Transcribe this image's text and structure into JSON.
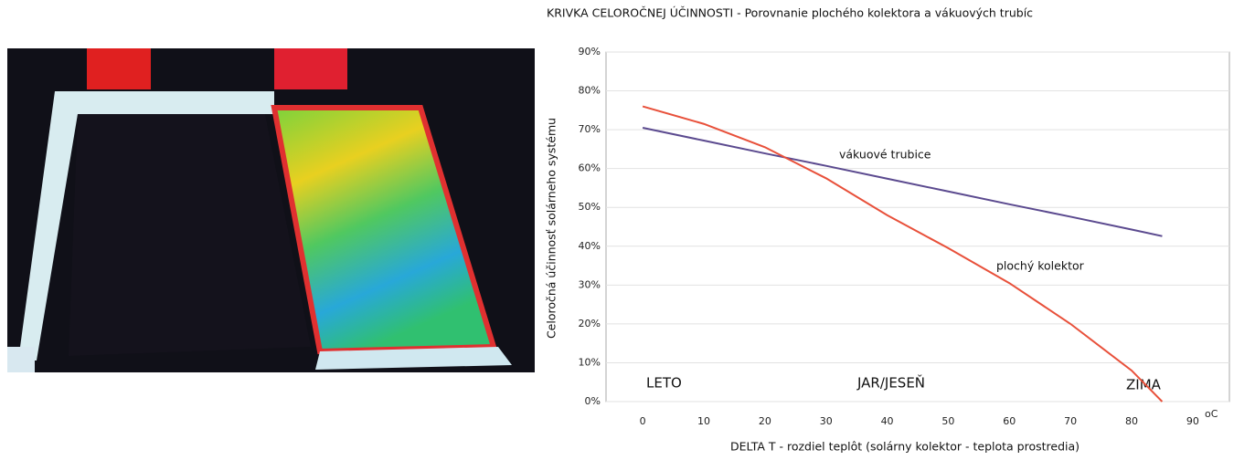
{
  "chart_data": {
    "type": "line",
    "title": "KRIVKA CELOROČNEJ ÚČINNOSTI - Porovnanie plochého kolektora a vákuových trubíc",
    "y_label": "Celoročná účinnosť solárneho systému",
    "x_label": "DELTA T - rozdiel teplôt (solárny kolektor  - teplota prostredia)",
    "x_unit": "oC",
    "annotations": [
      "LETO",
      "JAR/JESEŇ",
      "ZIMA"
    ],
    "x": [
      0,
      10,
      20,
      30,
      40,
      50,
      60,
      70,
      80,
      85
    ],
    "series": [
      {
        "name": "vákuové trubice",
        "color": "#5b4a8f",
        "values": [
          70.5,
          67.2,
          63.9,
          60.7,
          57.4,
          54.1,
          50.8,
          47.6,
          44.3,
          42.6
        ]
      },
      {
        "name": "plochý kolektor",
        "color": "#e8503a",
        "values": [
          76,
          71.5,
          65.5,
          57.5,
          48,
          39.5,
          30.5,
          20,
          8,
          0
        ]
      }
    ],
    "xlim": [
      -6,
      96
    ],
    "ylim": [
      0,
      90
    ],
    "xticks": [
      0,
      10,
      20,
      30,
      40,
      50,
      60,
      70,
      80,
      90
    ],
    "yticks": [
      {
        "value": 0,
        "label": "0%"
      },
      {
        "value": 10,
        "label": "10%"
      },
      {
        "value": 20,
        "label": "20%"
      },
      {
        "value": 30,
        "label": "30%"
      },
      {
        "value": 40,
        "label": "40%"
      },
      {
        "value": 50,
        "label": "50%"
      },
      {
        "value": 60,
        "label": "60%"
      },
      {
        "value": 70,
        "label": "70%"
      },
      {
        "value": 80,
        "label": "80%"
      },
      {
        "value": 90,
        "label": "90%"
      }
    ],
    "grid": true
  }
}
